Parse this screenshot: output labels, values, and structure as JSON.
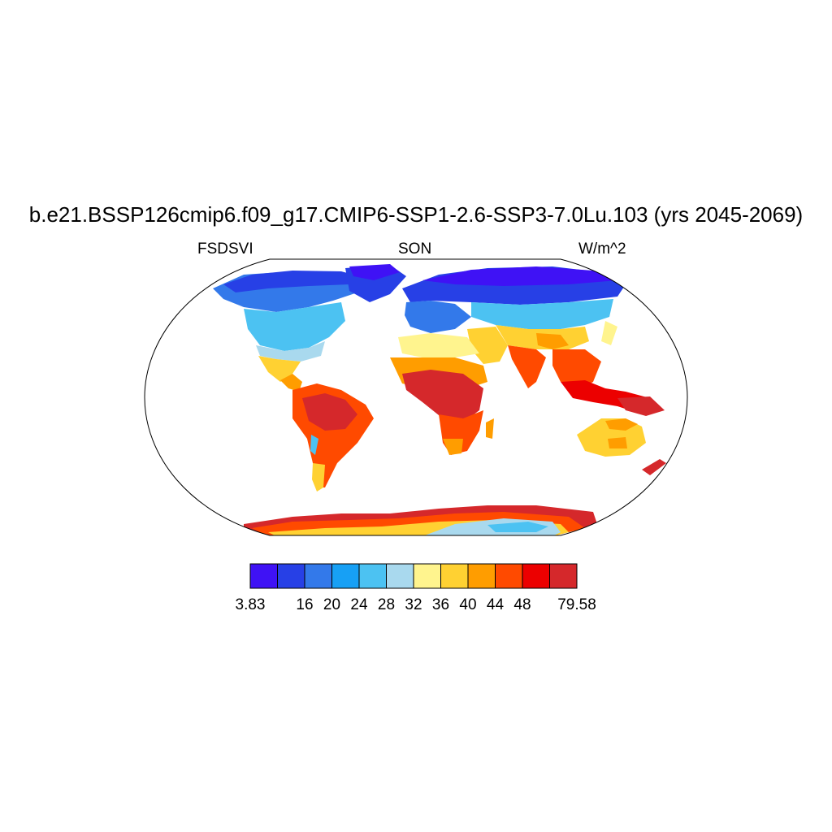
{
  "title": "b.e21.BSSP126cmip6.f09_g17.CMIP6-SSP1-2.6-SSP3-7.0Lu.103 (yrs 2045-2069)",
  "left_label": "FSDSVI",
  "center_label": "SON",
  "right_label": "W/m^2",
  "colorbar": {
    "colors": [
      "#3f12f5",
      "#2740e6",
      "#3379ea",
      "#17a0f5",
      "#4cc2f2",
      "#a9d9ee",
      "#fff48e",
      "#ffd132",
      "#ff9d00",
      "#ff4a00",
      "#ec0000",
      "#d5282b"
    ],
    "labels": [
      "3.83",
      "16",
      "20",
      "24",
      "28",
      "32",
      "36",
      "40",
      "44",
      "48",
      "79.58"
    ]
  },
  "map": {
    "projection": "Robinson",
    "ocean_color": "#ffffff",
    "coastline_color": "#000000"
  }
}
